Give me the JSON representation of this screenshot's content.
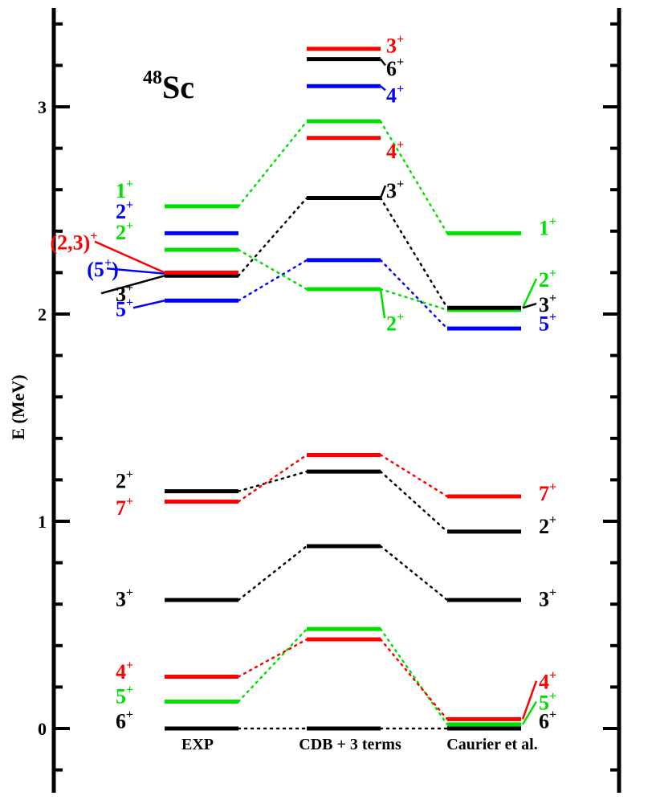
{
  "chart_data": {
    "type": "level-scheme",
    "title": "Sc",
    "title_mass": "48",
    "ylabel": "E (MeV)",
    "ylim": [
      -0.32,
      3.45
    ],
    "y_ticks": [
      0,
      1,
      2,
      3
    ],
    "y_tick_labels": [
      "0",
      "1",
      "2",
      "3"
    ],
    "columns": [
      "EXP",
      "CDB + 3 terms",
      "Caurier et al."
    ],
    "colors": {
      "black": "#000000",
      "red": "#ff0000",
      "green": "#00e000",
      "blue": "#0000ff"
    },
    "levels": {
      "EXP": [
        {
          "E": 0.0,
          "color": "black"
        },
        {
          "E": 0.13,
          "color": "green"
        },
        {
          "E": 0.25,
          "color": "red"
        },
        {
          "E": 0.62,
          "color": "black"
        },
        {
          "E": 1.095,
          "color": "red"
        },
        {
          "E": 1.145,
          "color": "black"
        },
        {
          "E": 2.065,
          "color": "blue"
        },
        {
          "E": 2.185,
          "color": "black"
        },
        {
          "E": 2.2,
          "color": "red"
        },
        {
          "E": 2.31,
          "color": "green"
        },
        {
          "E": 2.39,
          "color": "blue"
        },
        {
          "E": 2.52,
          "color": "green"
        }
      ],
      "CDB + 3 terms": [
        {
          "E": 0.0,
          "color": "black"
        },
        {
          "E": 0.43,
          "color": "red"
        },
        {
          "E": 0.48,
          "color": "green"
        },
        {
          "E": 0.88,
          "color": "black"
        },
        {
          "E": 1.24,
          "color": "black"
        },
        {
          "E": 1.32,
          "color": "red"
        },
        {
          "E": 2.12,
          "color": "green"
        },
        {
          "E": 2.26,
          "color": "blue"
        },
        {
          "E": 2.56,
          "color": "black"
        },
        {
          "E": 2.85,
          "color": "red"
        },
        {
          "E": 2.93,
          "color": "green"
        },
        {
          "E": 3.1,
          "color": "blue"
        },
        {
          "E": 3.23,
          "color": "black"
        },
        {
          "E": 3.28,
          "color": "red"
        }
      ],
      "Caurier et al.": [
        {
          "E": 0.0,
          "color": "black"
        },
        {
          "E": 0.02,
          "color": "green"
        },
        {
          "E": 0.045,
          "color": "red"
        },
        {
          "E": 0.62,
          "color": "black"
        },
        {
          "E": 0.95,
          "color": "black"
        },
        {
          "E": 1.12,
          "color": "red"
        },
        {
          "E": 1.93,
          "color": "blue"
        },
        {
          "E": 2.02,
          "color": "green"
        },
        {
          "E": 2.03,
          "color": "black"
        },
        {
          "E": 2.39,
          "color": "green"
        }
      ]
    },
    "connectors": [
      {
        "from": [
          "EXP",
          0.0
        ],
        "mid": [
          "CDB + 3 terms",
          0.0
        ],
        "to": [
          "Caurier et al.",
          0.0
        ],
        "color": "black"
      },
      {
        "from": [
          "EXP",
          0.13
        ],
        "mid": [
          "CDB + 3 terms",
          0.48
        ],
        "to": [
          "Caurier et al.",
          0.02
        ],
        "color": "green"
      },
      {
        "from": [
          "EXP",
          0.25
        ],
        "mid": [
          "CDB + 3 terms",
          0.43
        ],
        "to": [
          "Caurier et al.",
          0.045
        ],
        "color": "red"
      },
      {
        "from": [
          "EXP",
          0.62
        ],
        "mid": [
          "CDB + 3 terms",
          0.88
        ],
        "to": [
          "Caurier et al.",
          0.62
        ],
        "color": "black"
      },
      {
        "from": [
          "EXP",
          1.145
        ],
        "mid": [
          "CDB + 3 terms",
          1.24
        ],
        "to": [
          "Caurier et al.",
          0.95
        ],
        "color": "black"
      },
      {
        "from": [
          "EXP",
          1.095
        ],
        "mid": [
          "CDB + 3 terms",
          1.32
        ],
        "to": [
          "Caurier et al.",
          1.12
        ],
        "color": "red"
      },
      {
        "from": [
          "EXP",
          2.065
        ],
        "mid": [
          "CDB + 3 terms",
          2.26
        ],
        "to": [
          "Caurier et al.",
          1.93
        ],
        "color": "blue"
      },
      {
        "from": [
          "EXP",
          2.185
        ],
        "mid": [
          "CDB + 3 terms",
          2.56
        ],
        "to": [
          "Caurier et al.",
          2.03
        ],
        "color": "black"
      },
      {
        "from": [
          "EXP",
          2.31
        ],
        "mid": [
          "CDB + 3 terms",
          2.12
        ],
        "to": [
          "Caurier et al.",
          2.02
        ],
        "color": "green"
      },
      {
        "from": [
          "EXP",
          2.52
        ],
        "mid": [
          "CDB + 3 terms",
          2.93
        ],
        "to": [
          "Caurier et al.",
          2.39
        ],
        "color": "green"
      }
    ],
    "labels": {
      "EXP": [
        {
          "spin": "6",
          "parity": "+",
          "color": "black",
          "at": 0.04
        },
        {
          "spin": "5",
          "parity": "+",
          "color": "green",
          "at": 0.16
        },
        {
          "spin": "4",
          "parity": "+",
          "color": "red",
          "at": 0.28
        },
        {
          "spin": "3",
          "parity": "+",
          "color": "black",
          "at": 0.63
        },
        {
          "spin": "7",
          "parity": "+",
          "color": "red",
          "at": 1.07
        },
        {
          "spin": "2",
          "parity": "+",
          "color": "black",
          "at": 1.2
        },
        {
          "spin": "5",
          "parity": "+",
          "color": "blue",
          "at": 2.03
        },
        {
          "spin": "3",
          "parity": "+",
          "color": "black",
          "at": 2.1
        },
        {
          "spin": "(5",
          "parity": "+",
          "suffix": ")",
          "color": "blue",
          "at": 2.22
        },
        {
          "spin": "(2,3)",
          "parity": "+",
          "color": "red",
          "at": 2.35
        },
        {
          "spin": "2",
          "parity": "+",
          "color": "green",
          "at": 2.4
        },
        {
          "spin": "2",
          "parity": "+",
          "color": "blue",
          "at": 2.5
        },
        {
          "spin": "1",
          "parity": "+",
          "color": "green",
          "at": 2.6
        }
      ],
      "CDB + 3 terms": [
        {
          "spin": "2",
          "parity": "+",
          "color": "green",
          "at": 1.96
        },
        {
          "spin": "3",
          "parity": "+",
          "color": "black",
          "at": 2.6
        },
        {
          "spin": "4",
          "parity": "+",
          "color": "red",
          "at": 2.79
        },
        {
          "spin": "4",
          "parity": "+",
          "color": "blue",
          "at": 3.06
        },
        {
          "spin": "6",
          "parity": "+",
          "color": "black",
          "at": 3.19
        },
        {
          "spin": "3",
          "parity": "+",
          "color": "red",
          "at": 3.3
        }
      ],
      "Caurier et al.": [
        {
          "spin": "6",
          "parity": "+",
          "color": "black",
          "at": 0.04
        },
        {
          "spin": "5",
          "parity": "+",
          "color": "green",
          "at": 0.13
        },
        {
          "spin": "4",
          "parity": "+",
          "color": "red",
          "at": 0.23
        },
        {
          "spin": "3",
          "parity": "+",
          "color": "black",
          "at": 0.63
        },
        {
          "spin": "2",
          "parity": "+",
          "color": "black",
          "at": 0.98
        },
        {
          "spin": "7",
          "parity": "+",
          "color": "red",
          "at": 1.14
        },
        {
          "spin": "5",
          "parity": "+",
          "color": "blue",
          "at": 1.96
        },
        {
          "spin": "3",
          "parity": "+",
          "color": "black",
          "at": 2.05
        },
        {
          "spin": "2",
          "parity": "+",
          "color": "green",
          "at": 2.17
        },
        {
          "spin": "1",
          "parity": "+",
          "color": "green",
          "at": 2.42
        }
      ]
    }
  }
}
